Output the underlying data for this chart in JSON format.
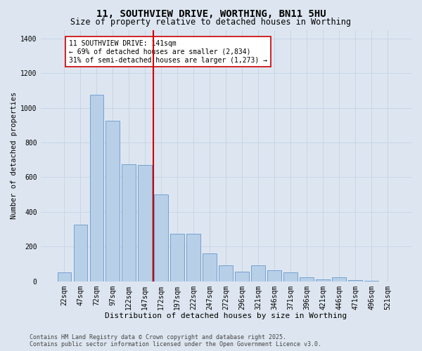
{
  "title": "11, SOUTHVIEW DRIVE, WORTHING, BN11 5HU",
  "subtitle": "Size of property relative to detached houses in Worthing",
  "xlabel": "Distribution of detached houses by size in Worthing",
  "ylabel": "Number of detached properties",
  "categories": [
    "22sqm",
    "47sqm",
    "72sqm",
    "97sqm",
    "122sqm",
    "147sqm",
    "172sqm",
    "197sqm",
    "222sqm",
    "247sqm",
    "272sqm",
    "296sqm",
    "321sqm",
    "346sqm",
    "371sqm",
    "396sqm",
    "421sqm",
    "446sqm",
    "471sqm",
    "496sqm",
    "521sqm"
  ],
  "values": [
    50,
    325,
    1075,
    925,
    675,
    670,
    500,
    275,
    275,
    160,
    90,
    55,
    90,
    65,
    50,
    25,
    10,
    25,
    5,
    2,
    0
  ],
  "bar_color": "#b8cfe8",
  "bar_edge_color": "#6699cc",
  "bar_width": 0.85,
  "vline_index": 5.5,
  "vline_color": "#cc0000",
  "annotation_text": "11 SOUTHVIEW DRIVE: 141sqm\n← 69% of detached houses are smaller (2,834)\n31% of semi-detached houses are larger (1,273) →",
  "annotation_box_color": "#ffffff",
  "annotation_box_edge": "#cc0000",
  "ylim": [
    0,
    1450
  ],
  "yticks": [
    0,
    200,
    400,
    600,
    800,
    1000,
    1200,
    1400
  ],
  "grid_color": "#c8d4e8",
  "background_color": "#dde6f0",
  "footer": "Contains HM Land Registry data © Crown copyright and database right 2025.\nContains public sector information licensed under the Open Government Licence v3.0.",
  "title_fontsize": 10,
  "subtitle_fontsize": 8.5,
  "xlabel_fontsize": 8,
  "ylabel_fontsize": 7.5,
  "tick_fontsize": 7,
  "annotation_fontsize": 7,
  "footer_fontsize": 6
}
